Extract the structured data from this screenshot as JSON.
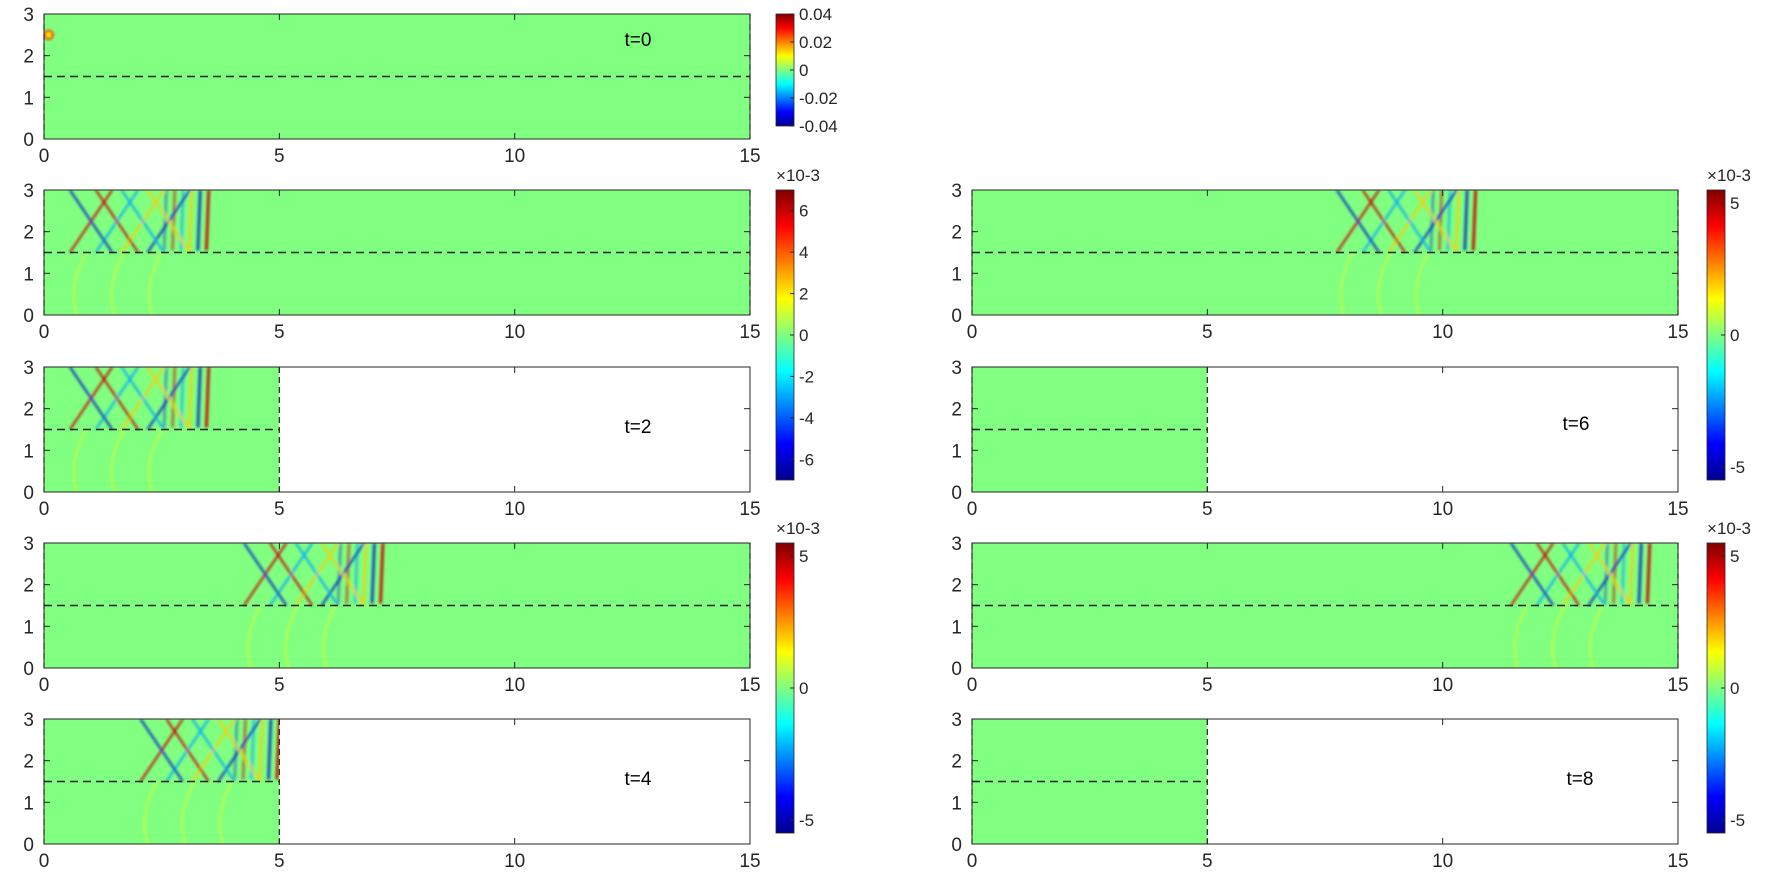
{
  "chart_data": {
    "type": "heatmap",
    "xlim": [
      0,
      15
    ],
    "ylim": [
      0,
      3
    ],
    "x_ticks": [
      "0",
      "5",
      "10",
      "15"
    ],
    "y_ticks": [
      "0",
      "1",
      "2",
      "3"
    ],
    "interface_y": 1.5,
    "colormap": "jet",
    "background_value_color": "#80ff80",
    "panels": [
      {
        "id": "p1",
        "label": "t=0",
        "extent_x": 15,
        "sources": [
          {
            "x": 0.1,
            "y": 2.5,
            "amp": 0.04
          }
        ]
      },
      {
        "id": "p2",
        "label": "",
        "extent_x": 15,
        "front_x": 3.5
      },
      {
        "id": "p3",
        "label": "t=2",
        "extent_x": 5,
        "front_x": 3.5
      },
      {
        "id": "p4",
        "label": "",
        "extent_x": 15,
        "front_x": 7.2
      },
      {
        "id": "p5",
        "label": "t=4",
        "extent_x": 5,
        "front_x": 5.0
      },
      {
        "id": "p6",
        "label": "",
        "extent_x": 15,
        "front_x": 10.7
      },
      {
        "id": "p7",
        "label": "t=6",
        "extent_x": 5,
        "front_x": 0
      },
      {
        "id": "p8",
        "label": "",
        "extent_x": 15,
        "front_x": 14.4
      },
      {
        "id": "p9",
        "label": "t=8",
        "extent_x": 5,
        "front_x": 0
      }
    ],
    "colorbars": [
      {
        "id": "cb1",
        "exponent": "",
        "ticks": [
          "0.04",
          "0.02",
          "0",
          "-0.02",
          "-0.04"
        ],
        "range": [
          -0.04,
          0.04
        ]
      },
      {
        "id": "cb2",
        "exponent": "×10-3",
        "ticks": [
          "6",
          "4",
          "2",
          "0",
          "-2",
          "-4",
          "-6"
        ],
        "range": [
          -7,
          7
        ]
      },
      {
        "id": "cb3",
        "exponent": "×10-3",
        "ticks": [
          "5",
          "0",
          "-5"
        ],
        "range": [
          -5.5,
          5.5
        ]
      },
      {
        "id": "cb4",
        "exponent": "×10-3",
        "ticks": [
          "5",
          "0",
          "-5"
        ],
        "range": [
          -5.5,
          5.5
        ]
      },
      {
        "id": "cb5",
        "exponent": "×10-3",
        "ticks": [
          "5",
          "0",
          "-5"
        ],
        "range": [
          -5.5,
          5.5
        ]
      }
    ]
  }
}
